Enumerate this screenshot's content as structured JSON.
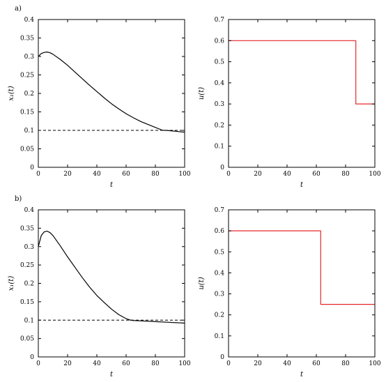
{
  "chart_data": [
    {
      "panel_label": "a)",
      "type": "line",
      "xlabel": "t",
      "ylabel": "x₁(t)",
      "xlim": [
        0,
        100
      ],
      "ylim": [
        0,
        0.4
      ],
      "xticks": [
        0,
        20,
        40,
        60,
        80,
        100
      ],
      "yticks": [
        0,
        0.05,
        0.1,
        0.15,
        0.2,
        0.25,
        0.3,
        0.35,
        0.4
      ],
      "ytick_labels": [
        "0",
        "0.05",
        "0.1",
        "0.15",
        "0.2",
        "0.25",
        "0.3",
        "0.35",
        "0.4"
      ],
      "grid": false,
      "series": [
        {
          "style": "solid",
          "color": "#000000",
          "x": [
            0,
            2,
            4,
            6,
            8,
            10,
            15,
            20,
            25,
            30,
            35,
            40,
            45,
            50,
            55,
            60,
            65,
            70,
            75,
            80,
            85,
            87,
            90,
            95,
            100
          ],
          "values": [
            0.3,
            0.308,
            0.311,
            0.312,
            0.31,
            0.306,
            0.292,
            0.276,
            0.258,
            0.24,
            0.222,
            0.205,
            0.188,
            0.172,
            0.158,
            0.145,
            0.134,
            0.124,
            0.116,
            0.108,
            0.1,
            0.1,
            0.099,
            0.097,
            0.095
          ]
        },
        {
          "style": "dashed",
          "color": "#000000",
          "x": [
            0,
            100
          ],
          "values": [
            0.1,
            0.1
          ]
        }
      ]
    },
    {
      "type": "line",
      "xlabel": "t",
      "ylabel": "u(t)",
      "xlim": [
        0,
        100
      ],
      "ylim": [
        0,
        0.7
      ],
      "xticks": [
        0,
        20,
        40,
        60,
        80,
        100
      ],
      "yticks": [
        0,
        0.1,
        0.2,
        0.3,
        0.4,
        0.5,
        0.6,
        0.7
      ],
      "ytick_labels": [
        "0",
        "0.1",
        "0.2",
        "0.3",
        "0.4",
        "0.5",
        "0.6",
        "0.7"
      ],
      "grid": false,
      "series": [
        {
          "style": "solid",
          "color": "#e8262b",
          "x": [
            0,
            87,
            87,
            100
          ],
          "values": [
            0.6,
            0.6,
            0.3,
            0.3
          ]
        }
      ]
    },
    {
      "panel_label": "b)",
      "type": "line",
      "xlabel": "t",
      "ylabel": "x₁(t)",
      "xlim": [
        0,
        100
      ],
      "ylim": [
        0,
        0.4
      ],
      "xticks": [
        0,
        20,
        40,
        60,
        80,
        100
      ],
      "yticks": [
        0,
        0.05,
        0.1,
        0.15,
        0.2,
        0.25,
        0.3,
        0.35,
        0.4
      ],
      "ytick_labels": [
        "0",
        "0.05",
        "0.1",
        "0.15",
        "0.2",
        "0.25",
        "0.3",
        "0.35",
        "0.4"
      ],
      "grid": false,
      "series": [
        {
          "style": "solid",
          "color": "#000000",
          "x": [
            0,
            2,
            4,
            6,
            8,
            10,
            15,
            20,
            25,
            30,
            35,
            40,
            45,
            50,
            55,
            60,
            63,
            65,
            70,
            80,
            90,
            100
          ],
          "values": [
            0.3,
            0.33,
            0.34,
            0.342,
            0.338,
            0.33,
            0.302,
            0.272,
            0.244,
            0.216,
            0.19,
            0.167,
            0.148,
            0.13,
            0.115,
            0.104,
            0.1,
            0.099,
            0.098,
            0.096,
            0.094,
            0.092
          ]
        },
        {
          "style": "dashed",
          "color": "#000000",
          "x": [
            0,
            100
          ],
          "values": [
            0.1,
            0.1
          ]
        }
      ]
    },
    {
      "type": "line",
      "xlabel": "t",
      "ylabel": "u(t)",
      "xlim": [
        0,
        100
      ],
      "ylim": [
        0,
        0.7
      ],
      "xticks": [
        0,
        20,
        40,
        60,
        80,
        100
      ],
      "yticks": [
        0,
        0.1,
        0.2,
        0.3,
        0.4,
        0.5,
        0.6,
        0.7
      ],
      "ytick_labels": [
        "0",
        "0.1",
        "0.2",
        "0.3",
        "0.4",
        "0.5",
        "0.6",
        "0.7"
      ],
      "grid": false,
      "series": [
        {
          "style": "solid",
          "color": "#e8262b",
          "x": [
            0,
            63,
            63,
            100
          ],
          "values": [
            0.6,
            0.6,
            0.25,
            0.25
          ]
        }
      ]
    }
  ]
}
